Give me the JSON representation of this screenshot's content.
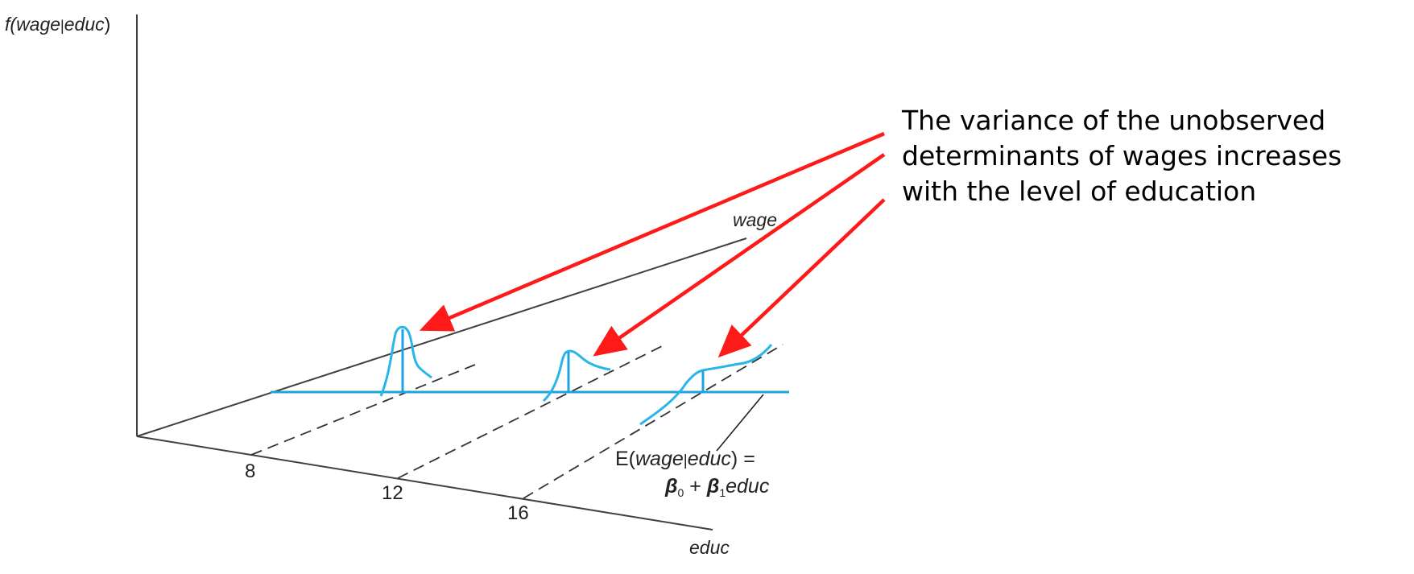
{
  "diagram": {
    "y_axis_label": {
      "prefix": "f(",
      "var": "wage",
      "sep": "|",
      "cond": "educ",
      "suffix": ")"
    },
    "wage_axis_label": "wage",
    "educ_axis_label": "educ",
    "ticks": [
      "8",
      "12",
      "16"
    ],
    "regression_label": {
      "line1": {
        "prefix": "E(",
        "var": "wage",
        "sep": "|",
        "cond": "educ",
        "suffix": ") ="
      },
      "line2": {
        "beta0": "β",
        "sub0": "0",
        "plus": " + ",
        "beta1": "β",
        "sub1": "1",
        "var": "educ"
      }
    },
    "annotation": [
      "The variance of the unobserved",
      "determinants of wages increases",
      "with the level of education"
    ],
    "colors": {
      "axis": "#404040",
      "regression_line": "#1fa3e0",
      "density": "#29b5ea",
      "arrow": "#ff1a1a",
      "dashed": "#333333"
    }
  }
}
